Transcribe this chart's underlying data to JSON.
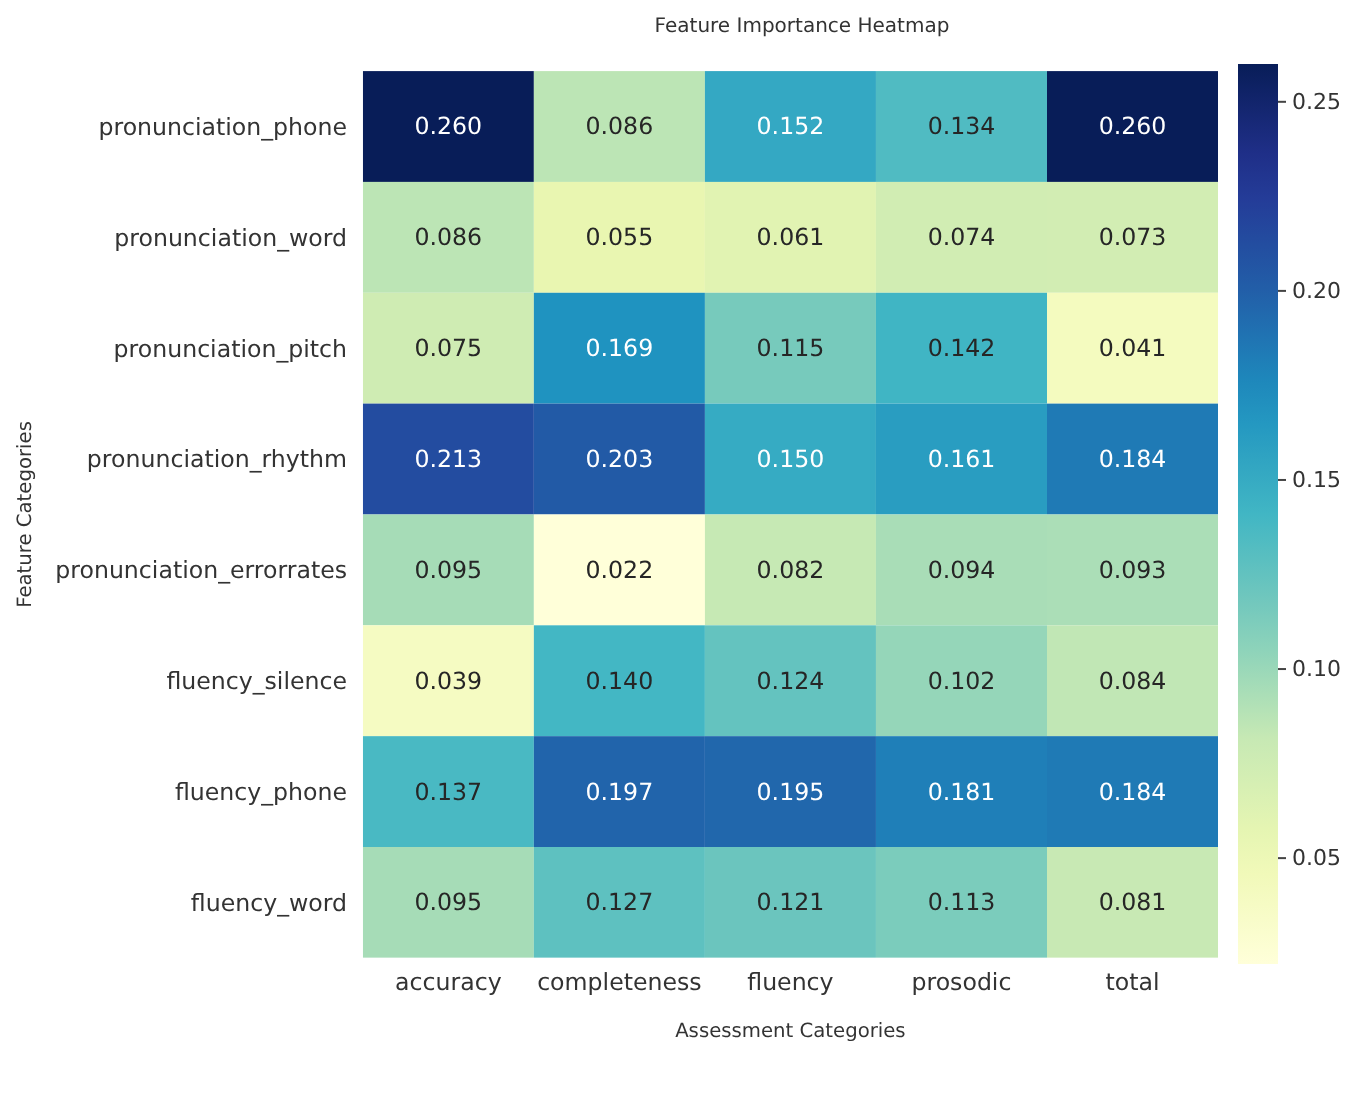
{
  "chart_data": {
    "type": "heatmap",
    "title": "Feature Importance Heatmap",
    "xlabel": "Assessment Categories",
    "ylabel": "Feature Categories",
    "categories": [
      "accuracy",
      "completeness",
      "fluency",
      "prosodic",
      "total"
    ],
    "y_categories": [
      "pronunciation_phone",
      "pronunciation_word",
      "pronunciation_pitch",
      "pronunciation_rhythm",
      "pronunciation_errorrates",
      "fluency_silence",
      "fluency_phone",
      "fluency_word"
    ],
    "cells": [
      [
        0.26,
        0.086,
        0.152,
        0.134,
        0.26
      ],
      [
        0.086,
        0.055,
        0.061,
        0.074,
        0.073
      ],
      [
        0.075,
        0.169,
        0.115,
        0.142,
        0.041
      ],
      [
        0.213,
        0.203,
        0.15,
        0.161,
        0.184
      ],
      [
        0.095,
        0.022,
        0.082,
        0.094,
        0.093
      ],
      [
        0.039,
        0.14,
        0.124,
        0.102,
        0.084
      ],
      [
        0.137,
        0.197,
        0.195,
        0.181,
        0.184
      ],
      [
        0.095,
        0.127,
        0.121,
        0.113,
        0.081
      ]
    ],
    "cell_labels": [
      [
        "0.260",
        "0.086",
        "0.152",
        "0.134",
        "0.260"
      ],
      [
        "0.086",
        "0.055",
        "0.061",
        "0.074",
        "0.073"
      ],
      [
        "0.075",
        "0.169",
        "0.115",
        "0.142",
        "0.041"
      ],
      [
        "0.213",
        "0.203",
        "0.150",
        "0.161",
        "0.184"
      ],
      [
        "0.095",
        "0.022",
        "0.082",
        "0.094",
        "0.093"
      ],
      [
        "0.039",
        "0.140",
        "0.124",
        "0.102",
        "0.084"
      ],
      [
        "0.137",
        "0.197",
        "0.195",
        "0.181",
        "0.184"
      ],
      [
        "0.095",
        "0.127",
        "0.121",
        "0.113",
        "0.081"
      ]
    ],
    "clim": [
      0.022,
      0.26
    ],
    "cticks": [
      0.05,
      {
        "value": 0.1,
        "label": "0.10"
      },
      0.15,
      {
        "value": 0.2,
        "label": "0.20"
      },
      0.25
    ]
  }
}
